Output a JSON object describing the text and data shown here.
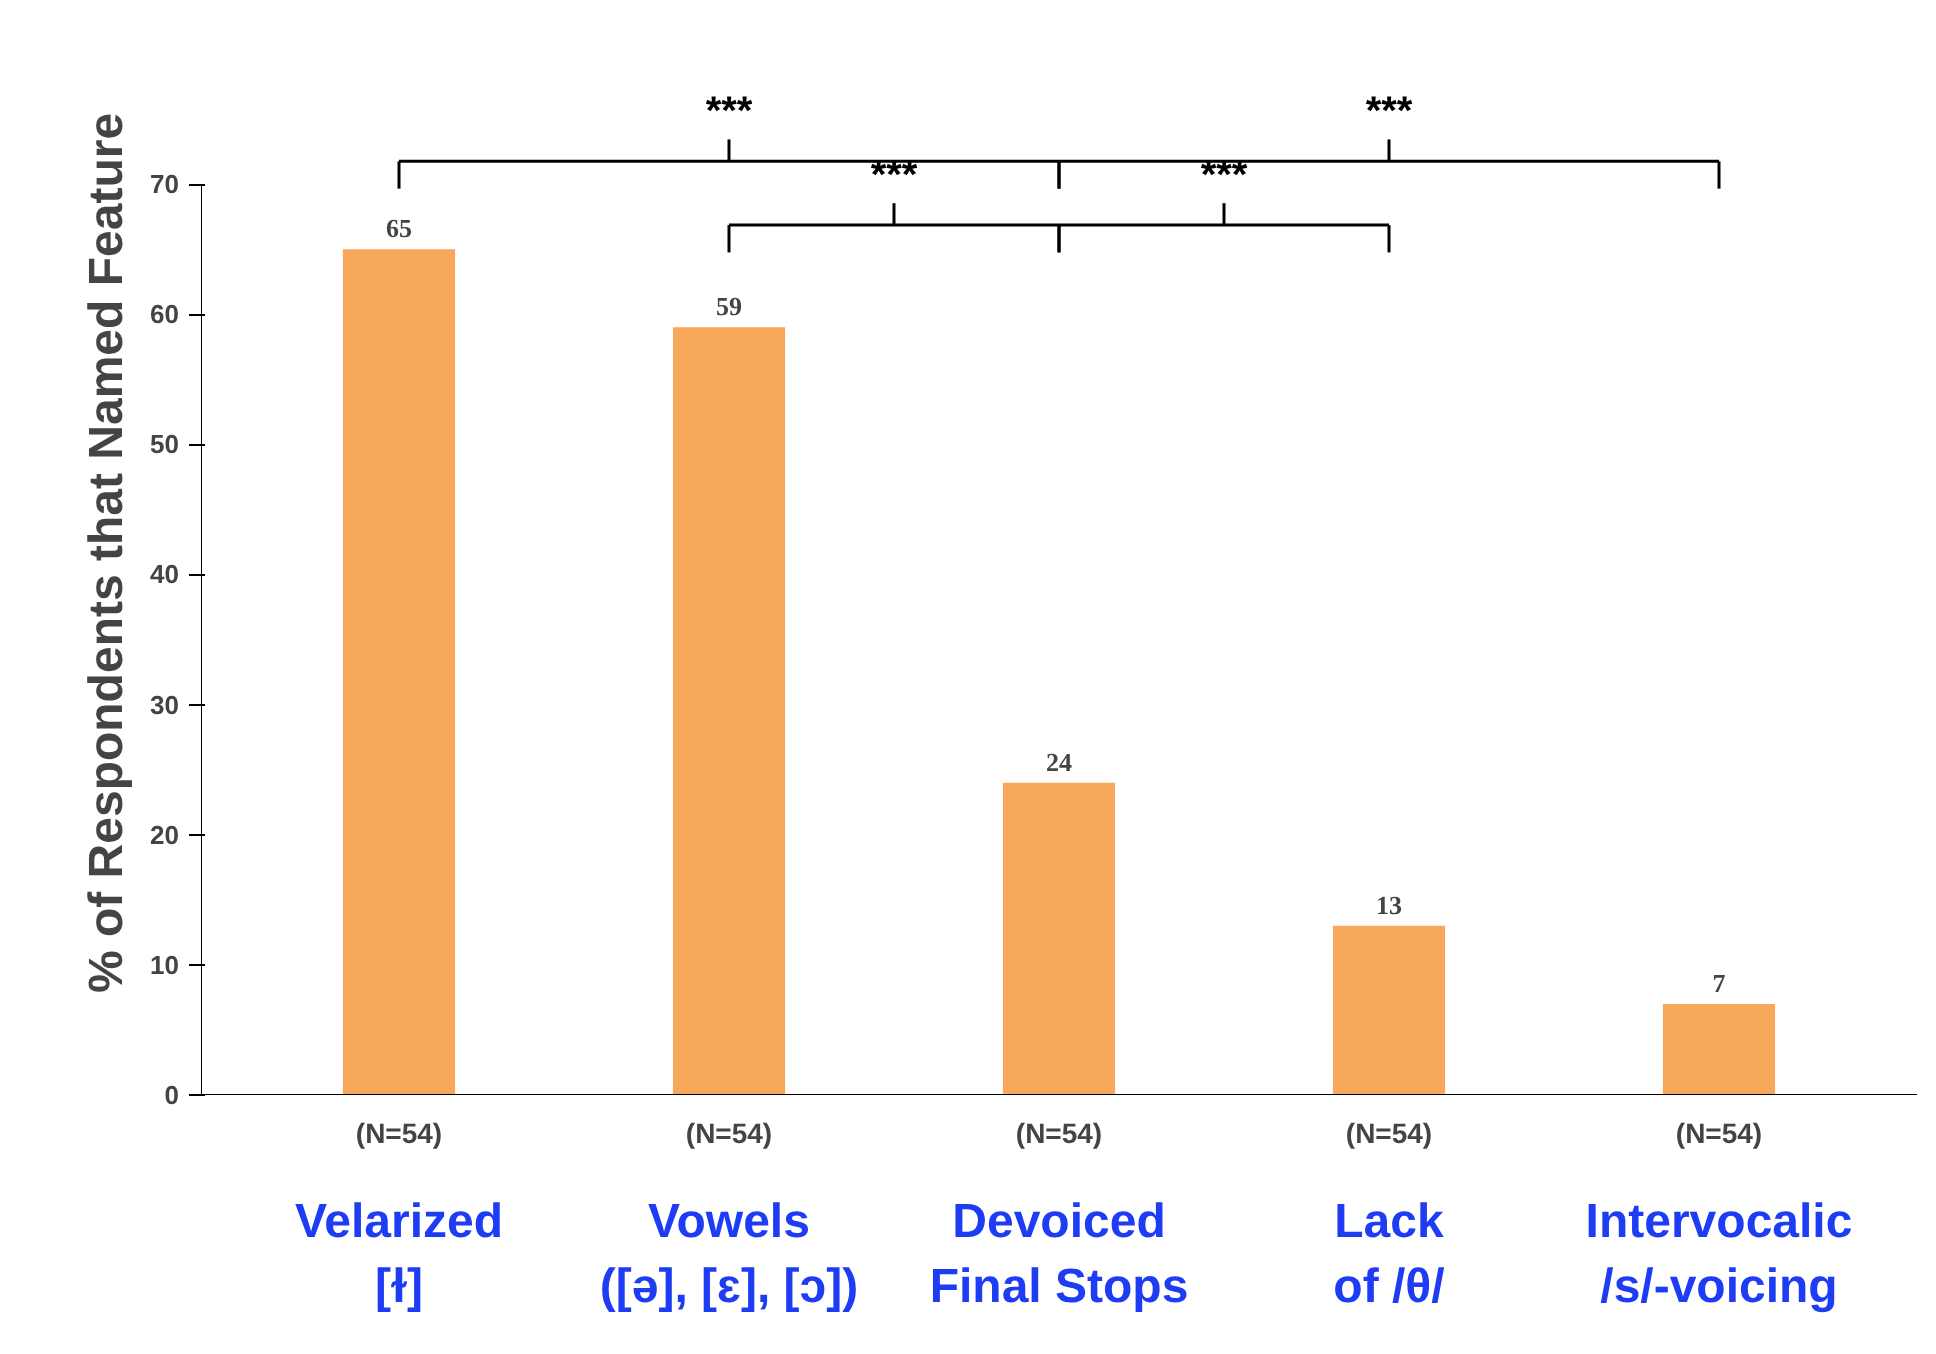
{
  "chart_data": {
    "type": "bar",
    "ylabel": "% of Respondents that Named Feature",
    "categories": [
      "Velarized\n[ɫ]",
      "Vowels\n([ə], [ɛ], [ɔ])",
      "Devoiced\nFinal Stops",
      "Lack\nof /θ/",
      "Intervocalic\n/s/-voicing"
    ],
    "values": [
      65,
      59,
      24,
      13,
      7
    ],
    "color": "#f7a85a",
    "data_labels": true,
    "ylim": [
      0,
      70
    ],
    "yticks": [
      0,
      10,
      20,
      30,
      40,
      50,
      60,
      70
    ],
    "grid": false,
    "annotations": [
      "(N=54)",
      "(N=54)",
      "(N=54)",
      "(N=54)",
      "(N=54)",
      "***",
      "***",
      "***",
      "***"
    ]
  }
}
